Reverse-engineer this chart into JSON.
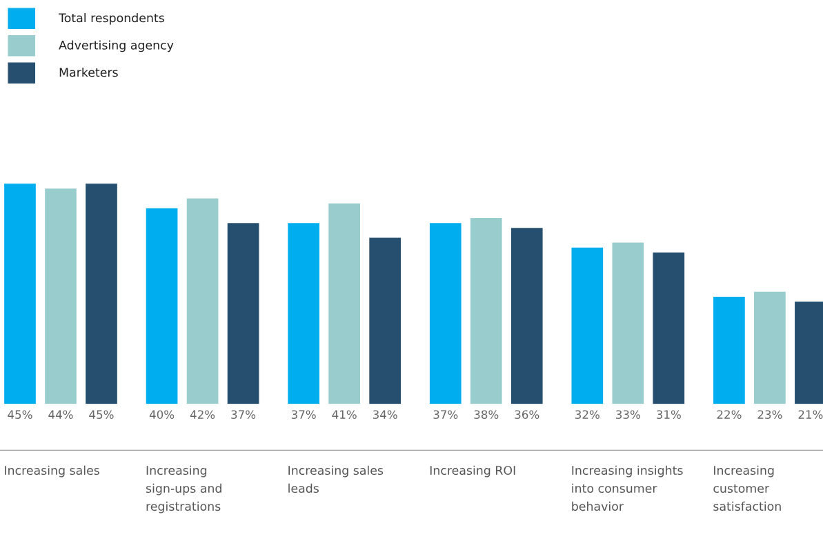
{
  "chart_data": {
    "type": "bar",
    "categories": [
      "Increasing sales",
      "Increasing\nsign-ups and\nregistrations",
      "Increasing sales\nleads",
      "Increasing ROI",
      "Increasing insights\ninto consumer\nbehavior",
      "Increasing\ncustomer\nsatisfaction"
    ],
    "series": [
      {
        "name": "Total respondents",
        "color": "#00adef",
        "values": [
          45,
          40,
          37,
          37,
          32,
          22
        ],
        "value_labels": [
          "45%",
          "40%",
          "37%",
          "37%",
          "32%",
          "22%"
        ]
      },
      {
        "name": "Advertising agency",
        "color": "#99cdcd",
        "values": [
          44,
          42,
          41,
          38,
          33,
          23
        ],
        "value_labels": [
          "44%",
          "42%",
          "41%",
          "38%",
          "33%",
          "23%"
        ]
      },
      {
        "name": "Marketers",
        "color": "#264f6f",
        "values": [
          45,
          37,
          34,
          36,
          31,
          21
        ],
        "value_labels": [
          "45%",
          "37%",
          "34%",
          "36%",
          "31%",
          "21%"
        ]
      }
    ],
    "legend": "top left"
  }
}
